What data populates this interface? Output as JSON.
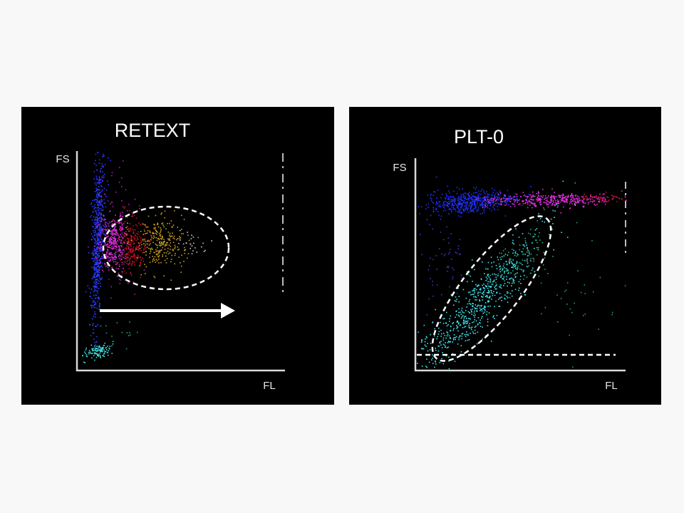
{
  "panels": [
    {
      "title": "RETEXT",
      "y_label": "FS",
      "x_label": "FL"
    },
    {
      "title": "PLT-0",
      "y_label": "FS",
      "x_label": "FL"
    }
  ]
}
